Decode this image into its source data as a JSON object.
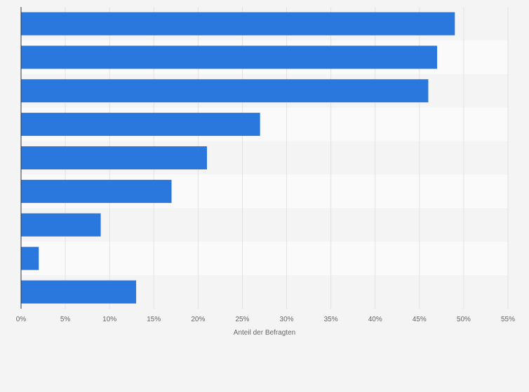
{
  "chart_data": {
    "type": "bar",
    "orientation": "horizontal",
    "title": "",
    "xlabel": "Anteil der Befragten",
    "ylabel": "",
    "xlim": [
      0,
      55
    ],
    "x_ticks": [
      "0%",
      "5%",
      "10%",
      "15%",
      "20%",
      "25%",
      "30%",
      "35%",
      "40%",
      "45%",
      "50%",
      "55%"
    ],
    "value_unit": "%",
    "grid": true,
    "legend": "none",
    "bar_color": "#2a77dd",
    "band_colors": [
      "#f4f4f4",
      "#fafafa"
    ],
    "categories": [
      "",
      "",
      "",
      "",
      "",
      "",
      "",
      "",
      ""
    ],
    "values": [
      49,
      47,
      46,
      27,
      21,
      17,
      9,
      2,
      13
    ]
  }
}
